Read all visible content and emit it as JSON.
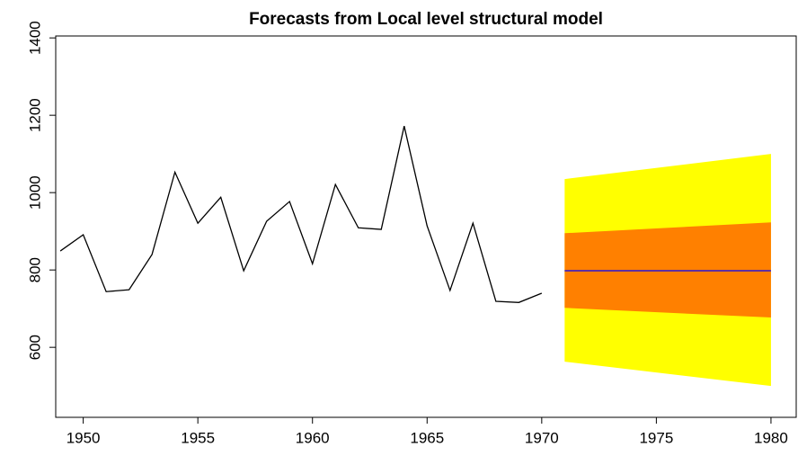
{
  "chart_data": {
    "type": "line",
    "title": "Forecasts from Local level structural model",
    "xlim": [
      1948.8,
      1981.1
    ],
    "ylim": [
      419,
      1405
    ],
    "xticks": [
      1950,
      1955,
      1960,
      1965,
      1970,
      1975,
      1980
    ],
    "yticks": [
      600,
      800,
      1000,
      1200,
      1400
    ],
    "intervals": [
      {
        "color": "#ffff00",
        "x": [
          1971,
          1980
        ],
        "lower": [
          563,
          500
        ],
        "upper": [
          1035,
          1100
        ]
      },
      {
        "color": "#ff8000",
        "x": [
          1971,
          1980
        ],
        "lower": [
          702,
          677
        ],
        "upper": [
          895,
          923
        ]
      }
    ],
    "series": [
      {
        "color": "#000000",
        "x": [
          1949,
          1950,
          1951,
          1952,
          1953,
          1954,
          1955,
          1956,
          1957,
          1958,
          1959,
          1960,
          1961,
          1962,
          1963,
          1964,
          1965,
          1966,
          1967,
          1968,
          1969,
          1970
        ],
        "values": [
          849,
          891,
          744,
          749,
          840,
          1053,
          921,
          988,
          798,
          926,
          977,
          816,
          1021,
          909,
          905,
          1172,
          914,
          747,
          921,
          719,
          716,
          740
        ]
      },
      {
        "color": "#0000ff",
        "x": [
          1971,
          1980
        ],
        "values": [
          798,
          798
        ]
      }
    ]
  }
}
